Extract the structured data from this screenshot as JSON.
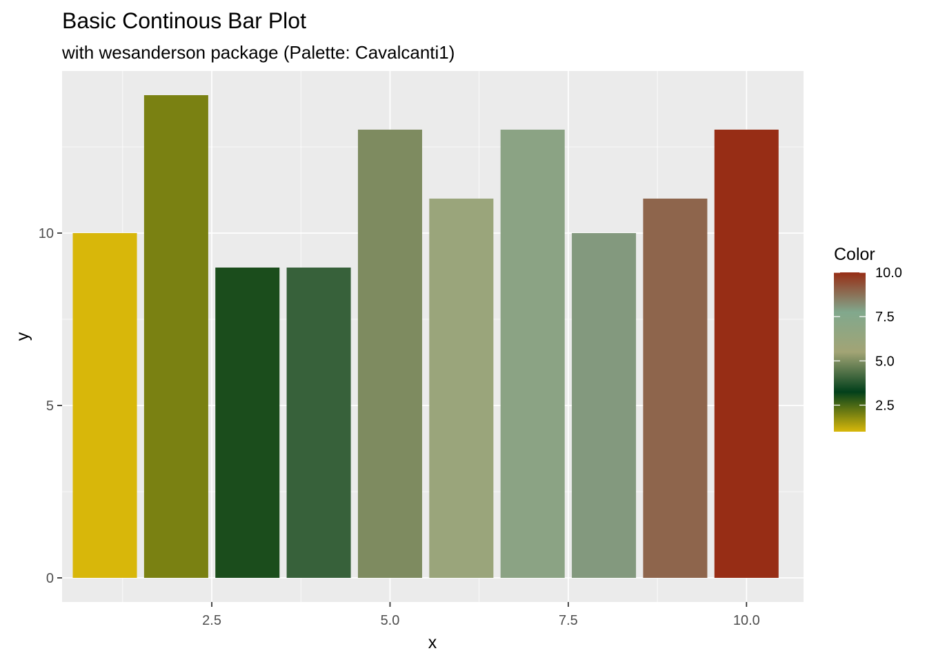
{
  "chart_data": {
    "type": "bar",
    "title": "Basic Continous Bar Plot",
    "subtitle": "with wesanderson package (Palette: Cavalcanti1)",
    "xlabel": "x",
    "ylabel": "y",
    "x": [
      1,
      2,
      3,
      4,
      5,
      6,
      7,
      8,
      9,
      10
    ],
    "values": [
      10,
      14,
      9,
      9,
      13,
      11,
      13,
      10,
      11,
      13
    ],
    "bar_colors": [
      "#D8B70A",
      "#7A8112",
      "#1B4D1C",
      "#37613A",
      "#7E8B60",
      "#9AA57B",
      "#8BA384",
      "#83997E",
      "#8E654C",
      "#972D15"
    ],
    "xlim": [
      0.4,
      10.8
    ],
    "ylim": [
      -0.7,
      14.7
    ],
    "x_ticks": [
      2.5,
      5.0,
      7.5,
      10.0
    ],
    "x_tick_labels": [
      "2.5",
      "5.0",
      "7.5",
      "10.0"
    ],
    "y_ticks": [
      0,
      5,
      10
    ],
    "y_tick_labels": [
      "0",
      "5",
      "10"
    ],
    "grid": true,
    "panel_background": "#EBEBEB",
    "grid_color": "#FFFFFF",
    "legend": {
      "title": "Color",
      "position": "right",
      "range": [
        1,
        10
      ],
      "breaks": [
        2.5,
        5.0,
        7.5,
        10.0
      ],
      "labels": [
        "2.5",
        "5.0",
        "7.5",
        "10.0"
      ],
      "gradient_colors": [
        "#D8B70A",
        "#02401B",
        "#A2A475",
        "#81A88D",
        "#972D15"
      ]
    }
  }
}
